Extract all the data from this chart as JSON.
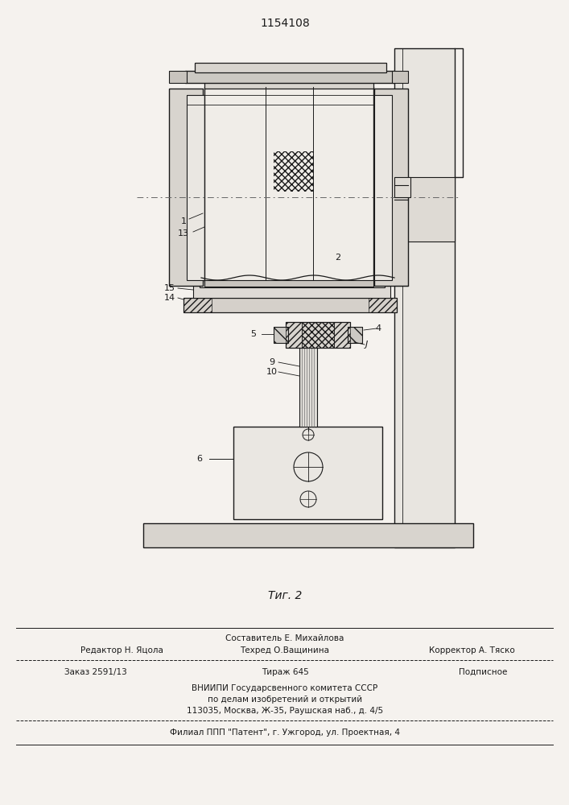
{
  "title": "1154108",
  "fig_label": "Τиг. 2",
  "bg_color": "#f5f2ee",
  "line_color": "#1a1a1a",
  "footer": {
    "line1_center": "Составитель Е. Михайлова",
    "line2_left": "Редактор Н. Яцола",
    "line2_center": "Техред О.Ващинина",
    "line2_right": "Корректор А. Тяско",
    "line3_left": "Заказ 2591/13",
    "line3_center": "Тираж 645",
    "line3_right": "Подписное",
    "line4": "ВНИИПИ Государсвенного комитета СССР",
    "line5": "по делам изобретений и открытий",
    "line6": "113035, Москва, Ж-35, Раушская наб., д. 4/5",
    "line7": "Филиал ППП \"Патент\", г. Ужгород, ул. Проектная, 4"
  }
}
